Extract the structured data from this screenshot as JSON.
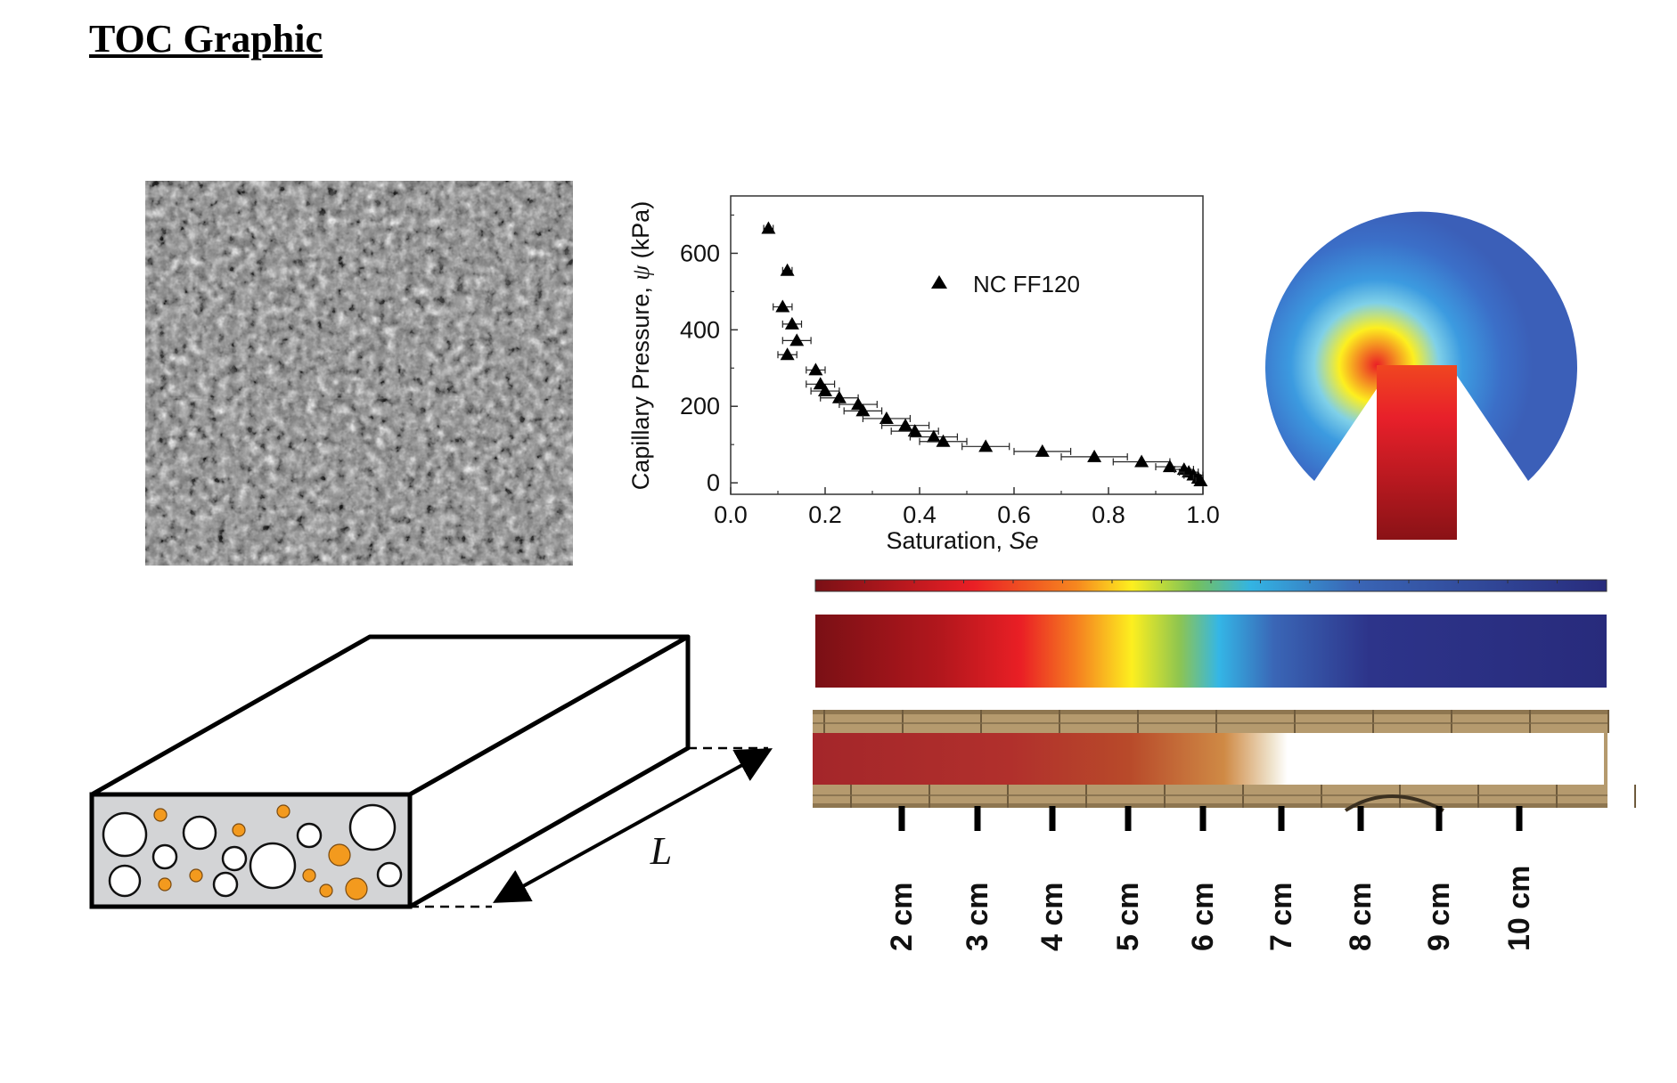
{
  "title": "TOC Graphic",
  "chart_data": {
    "type": "scatter",
    "ylabel_text": "Capillary Pressure, ",
    "ylabel_symbol": "ψ",
    "ylabel_unit": " (kPa)",
    "xlabel_text": "Saturation, ",
    "xlabel_symbol": "Se",
    "xlim": [
      0.0,
      1.0
    ],
    "ylim": [
      -30,
      750
    ],
    "xticks": [
      "0.0",
      "0.2",
      "0.4",
      "0.6",
      "0.8",
      "1.0"
    ],
    "yticks": [
      "0",
      "200",
      "400",
      "600"
    ],
    "legend": "top-right",
    "series": [
      {
        "name": "NC FF120",
        "points": [
          {
            "x": 0.08,
            "y": 665,
            "xerr": 0.01
          },
          {
            "x": 0.12,
            "y": 555,
            "xerr": 0.01
          },
          {
            "x": 0.11,
            "y": 460,
            "xerr": 0.02
          },
          {
            "x": 0.13,
            "y": 415,
            "xerr": 0.02
          },
          {
            "x": 0.14,
            "y": 372,
            "xerr": 0.03
          },
          {
            "x": 0.12,
            "y": 335,
            "xerr": 0.02
          },
          {
            "x": 0.18,
            "y": 295,
            "xerr": 0.02
          },
          {
            "x": 0.19,
            "y": 258,
            "xerr": 0.03
          },
          {
            "x": 0.2,
            "y": 240,
            "xerr": 0.03
          },
          {
            "x": 0.23,
            "y": 222,
            "xerr": 0.04
          },
          {
            "x": 0.27,
            "y": 205,
            "xerr": 0.04
          },
          {
            "x": 0.28,
            "y": 188,
            "xerr": 0.04
          },
          {
            "x": 0.33,
            "y": 168,
            "xerr": 0.05
          },
          {
            "x": 0.37,
            "y": 150,
            "xerr": 0.05
          },
          {
            "x": 0.39,
            "y": 135,
            "xerr": 0.05
          },
          {
            "x": 0.43,
            "y": 120,
            "xerr": 0.05
          },
          {
            "x": 0.45,
            "y": 108,
            "xerr": 0.05
          },
          {
            "x": 0.54,
            "y": 95,
            "xerr": 0.05
          },
          {
            "x": 0.66,
            "y": 82,
            "xerr": 0.06
          },
          {
            "x": 0.77,
            "y": 68,
            "xerr": 0.07
          },
          {
            "x": 0.87,
            "y": 55,
            "xerr": 0.06
          },
          {
            "x": 0.93,
            "y": 42,
            "xerr": 0.03
          },
          {
            "x": 0.96,
            "y": 35,
            "xerr": 0.02
          },
          {
            "x": 0.97,
            "y": 28,
            "xerr": 0.02
          },
          {
            "x": 0.98,
            "y": 20,
            "xerr": 0.02
          },
          {
            "x": 0.99,
            "y": 12,
            "xerr": 0.01
          },
          {
            "x": 0.995,
            "y": 5,
            "xerr": 0.01
          }
        ]
      }
    ]
  },
  "schematic": {
    "length_label": "L",
    "pore_color": "#f39a1e",
    "matrix_color": "#d3d4d6"
  },
  "strip": {
    "scale_labels": [
      "2 cm",
      "3 cm",
      "4 cm",
      "5 cm",
      "6 cm",
      "7 cm",
      "8 cm",
      "9 cm",
      "10 cm"
    ],
    "wet_color": "#b0302a",
    "background_color": "#b59a6e"
  }
}
